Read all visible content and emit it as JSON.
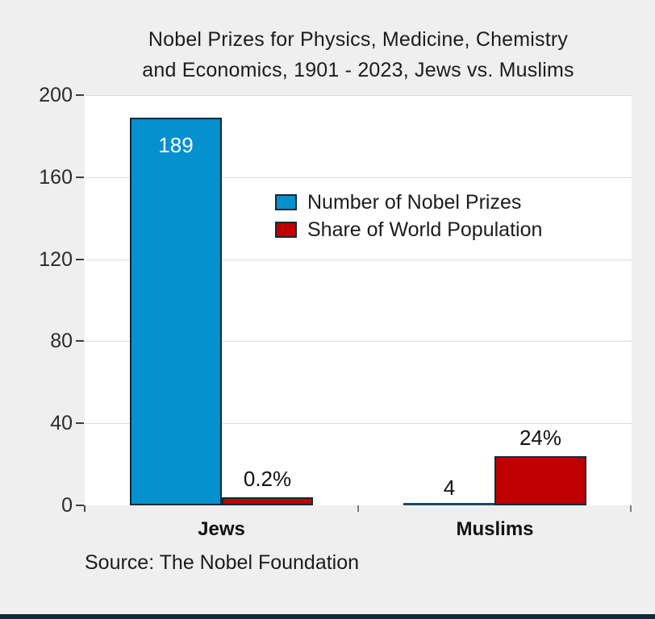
{
  "chart_data": {
    "type": "bar",
    "title": "Nobel Prizes for Physics, Medicine, Chemistry and Economics, 1901 - 2023, Jews vs. Muslims",
    "title_lines": [
      "Nobel Prizes for Physics, Medicine, Chemistry",
      "and Economics, 1901 - 2023, Jews vs. Muslims"
    ],
    "categories": [
      "Jews",
      "Muslims"
    ],
    "series": [
      {
        "name": "Number of Nobel Prizes",
        "color": "#0590ce",
        "values": [
          189,
          4
        ],
        "value_labels": [
          "189",
          "4"
        ]
      },
      {
        "name": "Share of World Population",
        "color": "#c00000",
        "values": [
          0.2,
          24
        ],
        "value_labels": [
          "0.2%",
          "24%"
        ]
      }
    ],
    "xlabel": "",
    "ylabel": "",
    "ylim": [
      0,
      200
    ],
    "yticks": [
      0,
      40,
      80,
      120,
      160,
      200
    ],
    "ytick_labels_topdown": [
      "200",
      "160",
      "120",
      "80",
      "40",
      "0"
    ],
    "grid": true,
    "legend_position": "inside-plot-upper-center",
    "source": "Source: The Nobel Foundation"
  },
  "colors": {
    "background": "#efeff0",
    "plot_background": "#ffffff",
    "bar_blue": "#0590ce",
    "bar_red": "#c00000",
    "bar_border": "#0e2a38",
    "gridline": "#dcdcdd",
    "footer_bar": "#0d2c3e",
    "text": "#1c1c1c",
    "inside_bar_label": "#ffffff"
  }
}
